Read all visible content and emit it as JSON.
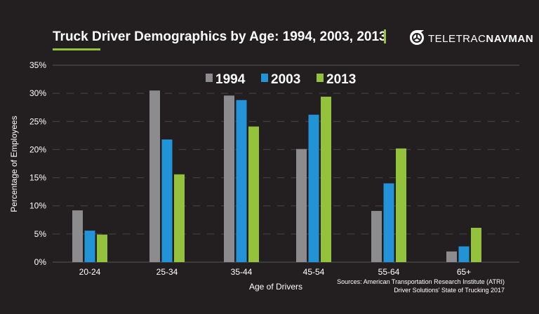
{
  "chart_data": {
    "type": "bar",
    "title": "Truck Driver Demographics by Age: 1994, 2003, 2013",
    "xlabel": "Age of Drivers",
    "ylabel": "Percentage of Employees",
    "ylim": [
      0,
      35
    ],
    "yticks": [
      "0%",
      "5%",
      "10%",
      "15%",
      "20%",
      "25%",
      "30%",
      "35%"
    ],
    "grid": true,
    "legend_position": "top-center",
    "categories": [
      "20-24",
      "25-34",
      "35-44",
      "45-54",
      "55-64",
      "65+"
    ],
    "series": [
      {
        "name": "1994",
        "color": "#8c8c8e",
        "values": [
          9.2,
          30.5,
          29.6,
          20.1,
          9.1,
          1.9
        ]
      },
      {
        "name": "2003",
        "color": "#2293d6",
        "values": [
          5.6,
          21.8,
          28.8,
          26.2,
          14.0,
          2.8
        ]
      },
      {
        "name": "2013",
        "color": "#95c23d",
        "values": [
          4.9,
          15.6,
          24.1,
          29.4,
          20.2,
          6.1
        ]
      }
    ],
    "sources": [
      "Sources: American Transportation Research Institute (ATRI)",
      "Driver Solutions' State of Trucking 2017"
    ]
  },
  "brand": {
    "logo_text_light": "TELETRAC",
    "logo_text_bold": "NAVMAN",
    "accent": "#95c23d"
  }
}
